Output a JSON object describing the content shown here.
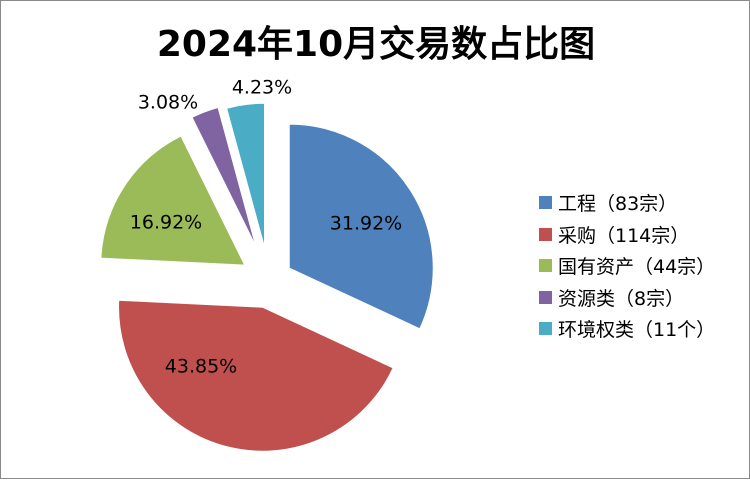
{
  "title": "2024年10月交易数占比图",
  "chart_data": {
    "type": "pie",
    "exploded": true,
    "series": [
      {
        "label": "31.92%",
        "legend": "工程（83宗）",
        "value": 83,
        "percent": 31.92,
        "color": "#4F81BD"
      },
      {
        "label": "43.85%",
        "legend": "采购（114宗）",
        "value": 114,
        "percent": 43.85,
        "color": "#C0504D"
      },
      {
        "label": "16.92%",
        "legend": "国有资产（44宗）",
        "value": 44,
        "percent": 16.92,
        "color": "#9BBB59"
      },
      {
        "label": "3.08%",
        "legend": "资源类（8宗）",
        "value": 8,
        "percent": 3.08,
        "color": "#8064A2"
      },
      {
        "label": "4.23%",
        "legend": "环境权类（11个）",
        "value": 11,
        "percent": 4.23,
        "color": "#4BACC6"
      }
    ],
    "legend_position": "right"
  }
}
